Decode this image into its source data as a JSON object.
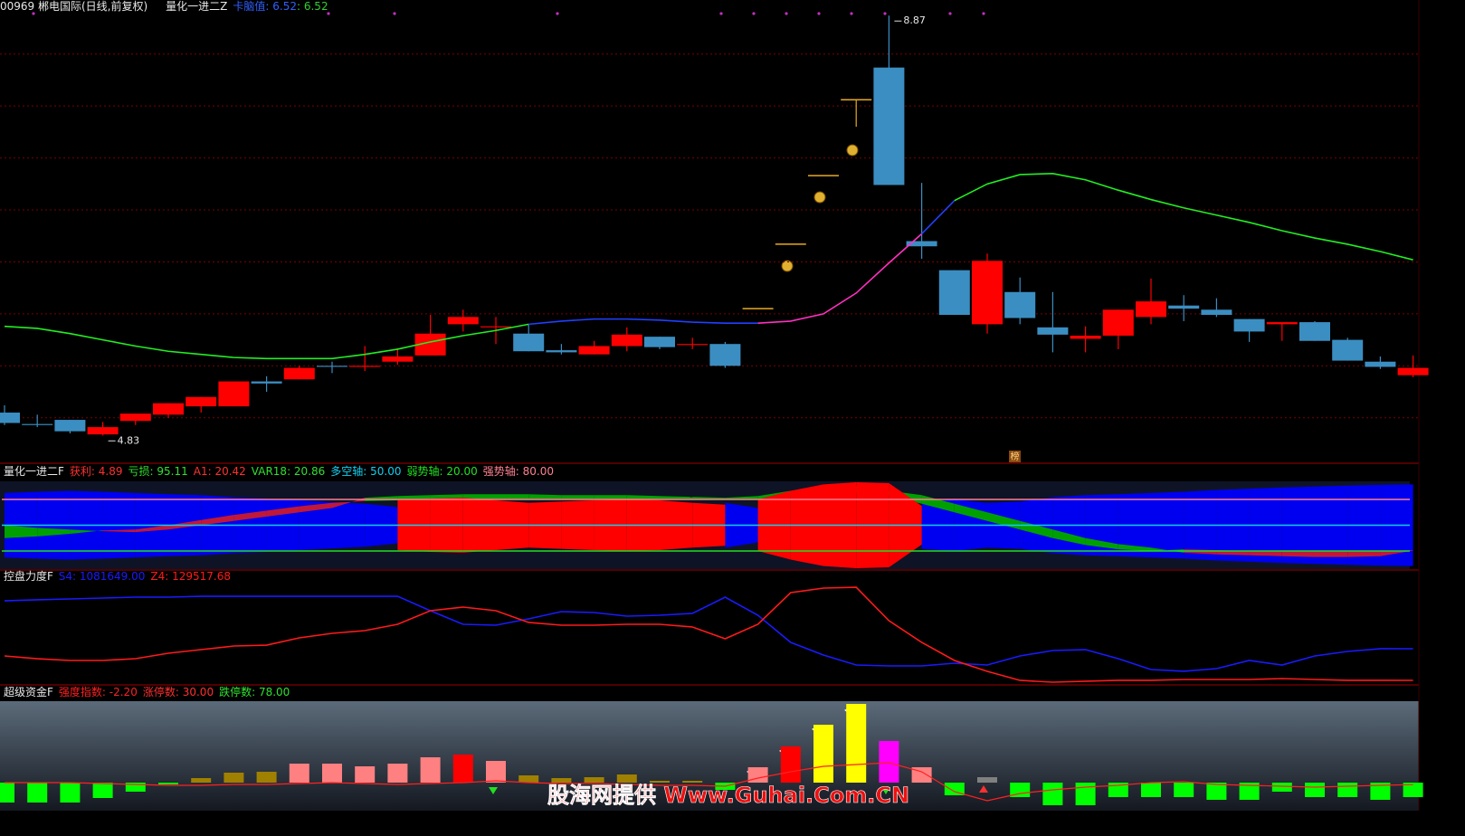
{
  "watermark": "股海网提供 Www.Guhai.Com.CN",
  "badge": "榜",
  "chart_data": [
    {
      "type": "candlestick",
      "title": "00969 郴电国际(日线,前复权)",
      "indicator": "量化一进二Z",
      "separator": ": ",
      "legend": {
        "name": "卡脑值",
        "values": [
          6.52,
          6.52
        ],
        "colors": [
          "#3060ff",
          "#30d030"
        ]
      },
      "up_color": "#ff0000",
      "down_color": "#3b8ec2",
      "flat_color": "#e8a820",
      "ylim": [
        4.58,
        9.02
      ],
      "yticks": [
        5,
        5.5,
        6,
        6.5,
        7,
        7.5,
        8,
        8.5
      ],
      "grid": true,
      "open": [
        5.05,
        4.94,
        4.98,
        4.84,
        4.97,
        5.03,
        5.11,
        5.11,
        5.35,
        5.37,
        5.5,
        5.49,
        5.54,
        5.6,
        5.9,
        5.87,
        5.81,
        5.65,
        5.61,
        5.69,
        5.78,
        5.7,
        5.71,
        6.05,
        6.67,
        7.33,
        8.06,
        8.37,
        6.7,
        6.42,
        5.9,
        6.21,
        5.87,
        5.76,
        5.79,
        5.97,
        6.08,
        6.04,
        5.95,
        5.9,
        5.92,
        5.75,
        5.54,
        5.41
      ],
      "high": [
        5.12,
        5.03,
        4.98,
        4.96,
        5.04,
        5.14,
        5.2,
        5.35,
        5.4,
        5.5,
        5.54,
        5.69,
        5.67,
        5.99,
        6.04,
        5.97,
        5.9,
        5.71,
        5.74,
        5.87,
        5.78,
        5.77,
        5.73,
        6.05,
        6.67,
        7.33,
        8.06,
        8.87,
        7.26,
        6.42,
        6.58,
        6.35,
        6.21,
        5.88,
        6.04,
        6.34,
        6.18,
        6.15,
        5.95,
        5.92,
        5.93,
        5.77,
        5.59,
        5.6
      ],
      "low": [
        4.93,
        4.91,
        4.85,
        4.83,
        4.93,
        5.0,
        5.05,
        5.11,
        5.25,
        5.37,
        5.43,
        5.45,
        5.51,
        5.6,
        5.83,
        5.71,
        5.64,
        5.61,
        5.61,
        5.64,
        5.66,
        5.66,
        5.48,
        6.05,
        6.67,
        7.33,
        7.8,
        7.24,
        6.53,
        5.99,
        5.81,
        5.9,
        5.63,
        5.63,
        5.66,
        5.9,
        5.93,
        5.97,
        5.73,
        5.74,
        5.74,
        5.55,
        5.47,
        5.39
      ],
      "close": [
        4.95,
        4.93,
        4.87,
        4.91,
        5.04,
        5.14,
        5.2,
        5.35,
        5.33,
        5.48,
        5.49,
        5.5,
        5.59,
        5.81,
        5.97,
        5.88,
        5.64,
        5.63,
        5.69,
        5.8,
        5.68,
        5.71,
        5.5,
        6.05,
        6.67,
        7.33,
        8.06,
        7.24,
        6.65,
        5.99,
        6.51,
        5.96,
        5.8,
        5.79,
        6.04,
        6.12,
        6.05,
        5.99,
        5.83,
        5.92,
        5.74,
        5.55,
        5.49,
        5.48
      ],
      "ma": {
        "values": [
          5.88,
          5.86,
          5.81,
          5.75,
          5.69,
          5.64,
          5.61,
          5.58,
          5.57,
          5.57,
          5.57,
          5.61,
          5.66,
          5.73,
          5.79,
          5.84,
          5.9,
          5.93,
          5.95,
          5.95,
          5.94,
          5.92,
          5.91,
          5.91,
          5.93,
          6.0,
          6.2,
          6.49,
          6.77,
          7.09,
          7.25,
          7.34,
          7.35,
          7.29,
          7.19,
          7.1,
          7.02,
          6.95,
          6.88,
          6.8,
          6.73,
          6.67,
          6.6,
          6.52
        ],
        "colors": [
          "#22ee22",
          "#22ee22",
          "#22ee22",
          "#22ee22",
          "#22ee22",
          "#22ee22",
          "#22ee22",
          "#22ee22",
          "#22ee22",
          "#22ee22",
          "#22ee22",
          "#22ee22",
          "#22ee22",
          "#22ee22",
          "#22ee22",
          "#22ee22",
          "#2040ff",
          "#2040ff",
          "#2040ff",
          "#2040ff",
          "#2040ff",
          "#2040ff",
          "#2040ff",
          "#ff30c0",
          "#ff30c0",
          "#ff30c0",
          "#ff30c0",
          "#ff30c0",
          "#2040ff",
          "#22ee22",
          "#22ee22",
          "#22ee22",
          "#22ee22",
          "#22ee22",
          "#22ee22",
          "#22ee22",
          "#22ee22",
          "#22ee22",
          "#22ee22",
          "#22ee22",
          "#22ee22",
          "#22ee22",
          "#22ee22",
          "#22ee22"
        ]
      },
      "annotations": [
        {
          "index": 27,
          "value": 8.87
        },
        {
          "index": 3,
          "value": 4.83
        }
      ]
    },
    {
      "type": "band",
      "title": "量化一进二F",
      "separator": ": ",
      "ylim": [
        0,
        100
      ],
      "series": [
        {
          "name": "获利",
          "color": "#ff0000",
          "label_color": "#ff3030",
          "values": [
            25,
            22,
            20,
            22,
            25,
            28,
            30,
            35,
            38,
            42,
            46,
            50,
            58,
            62,
            64,
            58,
            52,
            55,
            58,
            60,
            58,
            52,
            48,
            60,
            80,
            95,
            100,
            98,
            45,
            40,
            48,
            45,
            35,
            30,
            28,
            25,
            22,
            18,
            15,
            12,
            10,
            8,
            6,
            4.89
          ]
        },
        {
          "name": "亏损",
          "color": "#0000f0",
          "label_color": "#30e030",
          "values": [
            75,
            78,
            80,
            78,
            75,
            72,
            70,
            65,
            62,
            58,
            54,
            50,
            42,
            38,
            36,
            42,
            48,
            45,
            42,
            40,
            42,
            48,
            52,
            40,
            20,
            5,
            0,
            2,
            55,
            60,
            52,
            55,
            65,
            70,
            72,
            75,
            78,
            82,
            85,
            88,
            90,
            92,
            94,
            95.11
          ]
        },
        {
          "name": "A1",
          "color": "#00a000",
          "label_color": "#ff3030",
          "values": [
            50,
            47,
            45,
            43,
            42,
            45,
            50,
            55,
            60,
            65,
            70,
            82,
            84,
            85,
            86,
            86,
            86,
            85,
            85,
            85,
            84,
            83,
            82,
            84,
            90,
            95,
            95,
            90,
            85,
            75,
            65,
            55,
            45,
            35,
            28,
            24,
            18,
            16,
            15,
            14,
            13,
            13,
            14,
            20.42
          ]
        },
        {
          "name": "VAR18",
          "color": "#c01838",
          "label_color": "#30e030",
          "values": [
            35,
            37,
            40,
            44,
            45,
            50,
            56,
            62,
            67,
            72,
            76,
            78,
            79,
            80,
            80,
            80,
            80,
            80,
            80,
            80,
            80,
            80,
            80,
            80,
            82,
            85,
            88,
            85,
            75,
            65,
            55,
            45,
            35,
            27,
            22,
            20,
            22,
            21,
            20,
            20,
            20,
            20,
            20,
            20.86
          ]
        }
      ],
      "lines": [
        {
          "name": "多空轴",
          "value": 50,
          "value_label": "50.00",
          "color": "#10d0f0"
        },
        {
          "name": "弱势轴",
          "value": 20,
          "value_label": "20.00",
          "color": "#20e020"
        },
        {
          "name": "强势轴",
          "value": 80,
          "value_label": "80.00",
          "color": "#ff8090"
        }
      ]
    },
    {
      "type": "line",
      "title": "控盘力度F",
      "separator": ": ",
      "ylim": [
        -6500,
        2958700
      ],
      "series": [
        {
          "name": "S4",
          "color": "#1a1aff",
          "value_label": "1081649.00",
          "values": [
            2523000,
            2551000,
            2578000,
            2605000,
            2632000,
            2632000,
            2659000,
            2659000,
            2659000,
            2659000,
            2659000,
            2659000,
            2659000,
            2224000,
            1816000,
            1789000,
            1979000,
            2197000,
            2170000,
            2061000,
            2088000,
            2143000,
            2632000,
            2088000,
            1272000,
            891000,
            592000,
            565000,
            565000,
            646000,
            592000,
            864000,
            1027000,
            1054000,
            782000,
            456000,
            402000,
            483000,
            728000,
            592000,
            864000,
            1000000,
            1082000,
            1081649
          ]
        },
        {
          "name": "Z4",
          "color": "#ff1a1a",
          "values": [
            864000,
            782000,
            728000,
            728000,
            782000,
            946000,
            1054000,
            1163000,
            1190000,
            1408000,
            1544000,
            1626000,
            1816000,
            2224000,
            2333000,
            2224000,
            1871000,
            1789000,
            1789000,
            1816000,
            1816000,
            1735000,
            1381000,
            1816000,
            2768000,
            2904000,
            2931000,
            1925000,
            1272000,
            728000,
            402000,
            130000,
            75000,
            103000,
            130000,
            130000,
            157000,
            157000,
            157000,
            184000,
            157000,
            130000,
            130000,
            129517.68
          ]
        }
      ]
    },
    {
      "type": "bar",
      "title": "超级资金F",
      "separator": ": ",
      "ylim": [
        -30,
        89
      ],
      "series": [
        {
          "name": "强度指数",
          "color": "#ff2020",
          "value_label": "-2.20",
          "values": [
            0,
            0,
            0,
            -1,
            -2,
            -3,
            -3,
            -2,
            -2,
            -1,
            0,
            -1,
            -2,
            -1,
            0,
            2,
            0,
            -1,
            -1,
            -2,
            -3,
            -3,
            -4,
            5,
            12,
            18,
            20,
            22,
            12,
            -10,
            -20,
            -12,
            -8,
            -5,
            -3,
            0,
            1,
            -2,
            -3,
            -4,
            -5,
            -4,
            -3,
            -2.2
          ]
        }
      ],
      "counts": [
        {
          "name": "涨停数",
          "value": 30,
          "label": "30.00",
          "color": "#ff3030"
        },
        {
          "name": "跌停数",
          "value": 78,
          "label": "78.00",
          "color": "#30e030"
        }
      ],
      "bars": {
        "values": [
          -22,
          -22,
          -22,
          -17,
          -10,
          -2,
          5,
          11,
          12,
          21,
          21,
          18,
          21,
          28,
          31,
          24,
          8,
          5,
          6,
          9,
          2,
          2,
          -8,
          17,
          40,
          64,
          87,
          46,
          17,
          -14,
          6,
          -16,
          -25,
          -25,
          -16,
          -16,
          -16,
          -19,
          -19,
          -10,
          -16,
          -16,
          -19,
          -16
        ],
        "colors": [
          "#00ff00",
          "#00ff00",
          "#00ff00",
          "#00ff00",
          "#00ff00",
          "#00ff00",
          "#a08000",
          "#a08000",
          "#a08000",
          "#ff8080",
          "#ff8080",
          "#ff8080",
          "#ff8080",
          "#ff8080",
          "#ff0000",
          "#ff8080",
          "#a08000",
          "#a08000",
          "#a08000",
          "#a08000",
          "#a08000",
          "#a08000",
          "#00ff00",
          "#ff8080",
          "#ff0000",
          "#ffff00",
          "#ffff00",
          "#ff00ff",
          "#ff8080",
          "#00ff00",
          "#808080",
          "#00ff00",
          "#00ff00",
          "#00ff00",
          "#00ff00",
          "#00ff00",
          "#00ff00",
          "#00ff00",
          "#00ff00",
          "#00ff00",
          "#00ff00",
          "#00ff00",
          "#00ff00",
          "#00ff00"
        ]
      }
    }
  ]
}
